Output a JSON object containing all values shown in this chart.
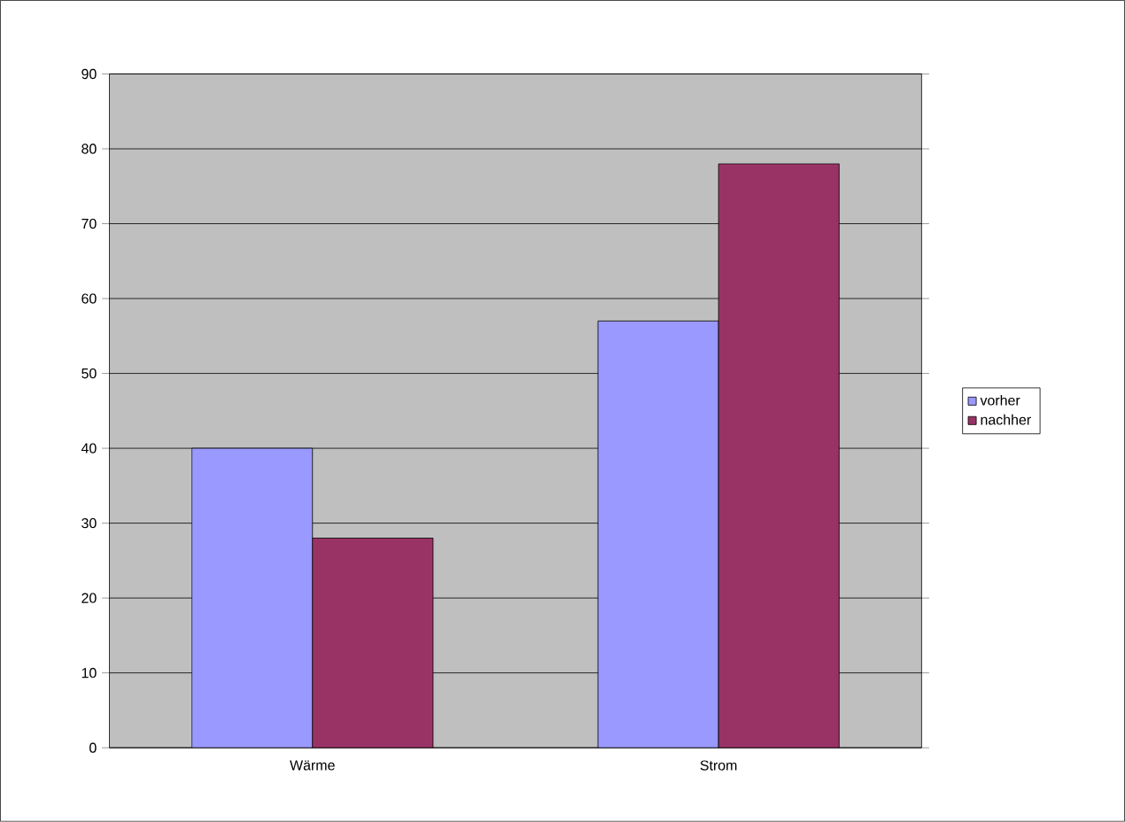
{
  "chart_data": {
    "type": "bar",
    "categories": [
      "Wärme",
      "Strom"
    ],
    "series": [
      {
        "name": "vorher",
        "color": "#9999ff",
        "values": [
          40,
          57
        ]
      },
      {
        "name": "nachher",
        "color": "#993366",
        "values": [
          28,
          78
        ]
      }
    ],
    "ylim": [
      0,
      90
    ],
    "yticks": [
      0,
      10,
      20,
      30,
      40,
      50,
      60,
      70,
      80,
      90
    ],
    "grid": "y",
    "legend": "right"
  }
}
